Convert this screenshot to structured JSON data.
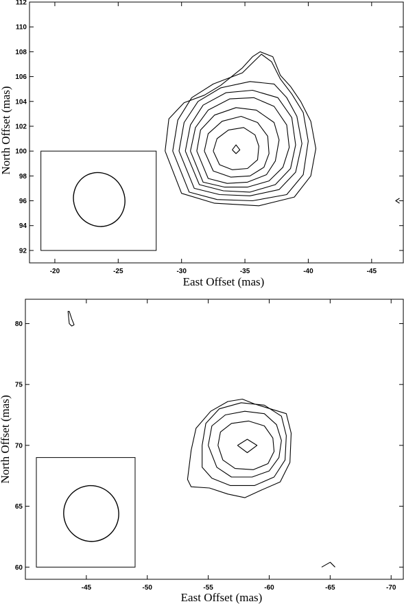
{
  "chart_data": [
    {
      "type": "contour",
      "xlabel": "East Offset (mas)",
      "ylabel": "North Offset (mas)",
      "xlim": [
        -18,
        -47.5
      ],
      "ylim": [
        91,
        112
      ],
      "x_ticks": [
        -20,
        -25,
        -30,
        -35,
        -40,
        -45
      ],
      "y_ticks": [
        92,
        94,
        96,
        98,
        100,
        102,
        104,
        106,
        108,
        110,
        112
      ],
      "x_tick_labels": [
        "-20",
        "-25",
        "-30",
        "-35",
        "-40",
        "-45"
      ],
      "y_tick_labels": [
        "92",
        "94",
        "96",
        "98",
        "100",
        "102",
        "104",
        "106",
        "108",
        "110",
        "112"
      ],
      "beam": {
        "x": -23.5,
        "y": 96.1,
        "major_axis": 4.4,
        "minor_axis": 4.0,
        "box_x": [
          -18.9,
          -28
        ],
        "box_y": [
          92,
          100
        ]
      },
      "source_peak": {
        "x": -34.3,
        "y": 100.1
      },
      "contours": [
        [
          [
            -34.0,
            100.1
          ],
          [
            -34.3,
            100.5
          ],
          [
            -34.6,
            100.1
          ],
          [
            -34.3,
            99.8
          ],
          [
            -34.0,
            100.1
          ]
        ],
        [
          [
            -32.5,
            100.0
          ],
          [
            -32.8,
            101.0
          ],
          [
            -33.7,
            101.7
          ],
          [
            -34.9,
            101.9
          ],
          [
            -35.8,
            101.3
          ],
          [
            -36.1,
            100.4
          ],
          [
            -36.0,
            99.3
          ],
          [
            -35.2,
            98.6
          ],
          [
            -34.0,
            98.5
          ],
          [
            -33.0,
            98.9
          ],
          [
            -32.5,
            100.0
          ]
        ],
        [
          [
            -31.8,
            100.0
          ],
          [
            -32.1,
            101.4
          ],
          [
            -33.2,
            102.4
          ],
          [
            -34.7,
            102.8
          ],
          [
            -36.0,
            102.3
          ],
          [
            -36.8,
            101.2
          ],
          [
            -36.9,
            99.8
          ],
          [
            -36.5,
            98.7
          ],
          [
            -35.4,
            98.0
          ],
          [
            -33.9,
            97.9
          ],
          [
            -32.5,
            98.4
          ],
          [
            -31.8,
            100.0
          ]
        ],
        [
          [
            -31.2,
            100.0
          ],
          [
            -31.5,
            101.7
          ],
          [
            -32.6,
            102.9
          ],
          [
            -34.3,
            103.5
          ],
          [
            -35.9,
            103.3
          ],
          [
            -37.3,
            102.3
          ],
          [
            -37.7,
            100.9
          ],
          [
            -37.4,
            99.2
          ],
          [
            -36.7,
            98.1
          ],
          [
            -35.2,
            97.5
          ],
          [
            -33.6,
            97.4
          ],
          [
            -32.1,
            97.8
          ],
          [
            -31.2,
            100.0
          ]
        ],
        [
          [
            -30.7,
            100.0
          ],
          [
            -31.1,
            101.9
          ],
          [
            -32.1,
            103.3
          ],
          [
            -33.8,
            104.2
          ],
          [
            -35.7,
            104.3
          ],
          [
            -37.3,
            103.6
          ],
          [
            -38.3,
            102.1
          ],
          [
            -38.5,
            100.3
          ],
          [
            -38.0,
            98.7
          ],
          [
            -36.9,
            97.6
          ],
          [
            -35.2,
            97.1
          ],
          [
            -33.4,
            97.1
          ],
          [
            -31.7,
            97.5
          ],
          [
            -30.7,
            100.0
          ]
        ],
        [
          [
            -30.3,
            100.0
          ],
          [
            -30.7,
            102.1
          ],
          [
            -31.7,
            103.7
          ],
          [
            -33.5,
            104.7
          ],
          [
            -35.6,
            104.9
          ],
          [
            -37.6,
            104.3
          ],
          [
            -38.7,
            102.7
          ],
          [
            -39.0,
            100.5
          ],
          [
            -38.6,
            98.6
          ],
          [
            -37.4,
            97.3
          ],
          [
            -35.4,
            96.7
          ],
          [
            -33.3,
            96.8
          ],
          [
            -31.4,
            97.3
          ],
          [
            -30.3,
            100.0
          ]
        ],
        [
          [
            -29.8,
            100.0
          ],
          [
            -30.2,
            102.3
          ],
          [
            -31.3,
            104.0
          ],
          [
            -33.1,
            105.1
          ],
          [
            -35.4,
            105.6
          ],
          [
            -37.3,
            105.4
          ],
          [
            -38.3,
            104.3
          ],
          [
            -39.1,
            102.8
          ],
          [
            -39.5,
            100.6
          ],
          [
            -39.0,
            98.3
          ],
          [
            -37.7,
            96.9
          ],
          [
            -35.4,
            96.4
          ],
          [
            -33.0,
            96.5
          ],
          [
            -31.0,
            97.0
          ],
          [
            -29.8,
            100.0
          ]
        ],
        [
          [
            -29.3,
            100.0
          ],
          [
            -29.7,
            102.5
          ],
          [
            -30.8,
            104.3
          ],
          [
            -32.5,
            105.4
          ],
          [
            -34.8,
            106.3
          ],
          [
            -35.8,
            107.3
          ],
          [
            -36.3,
            107.8
          ],
          [
            -37.1,
            107.2
          ],
          [
            -37.8,
            105.8
          ],
          [
            -38.7,
            104.6
          ],
          [
            -39.6,
            103.1
          ],
          [
            -40.0,
            100.8
          ],
          [
            -39.6,
            98.1
          ],
          [
            -38.3,
            96.5
          ],
          [
            -35.6,
            96.0
          ],
          [
            -32.8,
            96.1
          ],
          [
            -30.6,
            96.7
          ],
          [
            -29.3,
            100.0
          ]
        ],
        [
          [
            -28.7,
            100.0
          ],
          [
            -29.0,
            102.6
          ],
          [
            -30.2,
            103.9
          ],
          [
            -31.8,
            104.5
          ],
          [
            -33.1,
            105.3
          ],
          [
            -34.8,
            106.7
          ],
          [
            -35.6,
            107.6
          ],
          [
            -36.2,
            108.0
          ],
          [
            -37.2,
            107.6
          ],
          [
            -37.8,
            106.1
          ],
          [
            -38.6,
            105.2
          ],
          [
            -39.4,
            104.0
          ],
          [
            -40.2,
            102.4
          ],
          [
            -40.6,
            100.2
          ],
          [
            -40.2,
            98.0
          ],
          [
            -38.9,
            96.3
          ],
          [
            -36.1,
            95.6
          ],
          [
            -32.6,
            95.8
          ],
          [
            -30.0,
            96.6
          ],
          [
            -28.7,
            100.0
          ]
        ],
        [
          [
            -47.2,
            96.2
          ],
          [
            -46.9,
            96.0
          ],
          [
            -47.2,
            95.8
          ]
        ]
      ]
    },
    {
      "type": "contour",
      "xlabel": "East Offset (mas)",
      "ylabel": "North Offset (mas)",
      "xlim": [
        -40,
        -71
      ],
      "ylim": [
        59,
        82
      ],
      "x_ticks": [
        -45,
        -50,
        -55,
        -60,
        -65,
        -70
      ],
      "y_ticks": [
        60,
        65,
        70,
        75,
        80
      ],
      "x_tick_labels": [
        "-45",
        "-50",
        "-55",
        "-60",
        "-65",
        "-70"
      ],
      "y_tick_labels": [
        "60",
        "65",
        "70",
        "75",
        "80"
      ],
      "beam": {
        "x": -45.4,
        "y": 64.4,
        "major_axis": 4.6,
        "minor_axis": 4.5,
        "box_x": [
          -40.9,
          -49
        ],
        "box_y": [
          60,
          69
        ]
      },
      "source_peak": {
        "x": -58.2,
        "y": 70.0
      },
      "contours": [
        [
          [
            -57.4,
            70.0
          ],
          [
            -58.2,
            70.5
          ],
          [
            -59.0,
            70.0
          ],
          [
            -58.2,
            69.4
          ],
          [
            -57.4,
            70.0
          ]
        ],
        [
          [
            -55.8,
            70.0
          ],
          [
            -56.0,
            71.1
          ],
          [
            -56.9,
            71.8
          ],
          [
            -58.3,
            72.0
          ],
          [
            -59.6,
            71.6
          ],
          [
            -60.3,
            70.6
          ],
          [
            -60.4,
            69.5
          ],
          [
            -59.9,
            68.5
          ],
          [
            -58.7,
            68.0
          ],
          [
            -57.2,
            68.1
          ],
          [
            -56.2,
            68.8
          ],
          [
            -55.8,
            70.0
          ]
        ],
        [
          [
            -55.0,
            70.0
          ],
          [
            -55.3,
            71.6
          ],
          [
            -56.4,
            72.5
          ],
          [
            -58.0,
            72.8
          ],
          [
            -59.6,
            72.6
          ],
          [
            -60.6,
            71.7
          ],
          [
            -61.0,
            70.4
          ],
          [
            -60.8,
            69.0
          ],
          [
            -60.0,
            67.9
          ],
          [
            -58.6,
            67.4
          ],
          [
            -56.9,
            67.4
          ],
          [
            -55.7,
            68.2
          ],
          [
            -55.0,
            70.0
          ]
        ],
        [
          [
            -54.5,
            70.0
          ],
          [
            -54.8,
            71.8
          ],
          [
            -55.9,
            73.0
          ],
          [
            -57.7,
            73.5
          ],
          [
            -59.6,
            73.3
          ],
          [
            -61.0,
            72.4
          ],
          [
            -61.4,
            70.8
          ],
          [
            -61.3,
            68.8
          ],
          [
            -60.4,
            67.4
          ],
          [
            -58.8,
            66.7
          ],
          [
            -56.8,
            66.7
          ],
          [
            -55.3,
            67.3
          ],
          [
            -54.5,
            68.2
          ],
          [
            -54.5,
            70.0
          ]
        ],
        [
          [
            -53.6,
            69.6
          ],
          [
            -54.0,
            71.4
          ],
          [
            -55.2,
            72.8
          ],
          [
            -56.6,
            73.6
          ],
          [
            -57.8,
            73.8
          ],
          [
            -58.8,
            73.4
          ],
          [
            -60.1,
            73.0
          ],
          [
            -61.4,
            72.6
          ],
          [
            -61.8,
            71.0
          ],
          [
            -61.7,
            68.6
          ],
          [
            -60.9,
            67.0
          ],
          [
            -59.3,
            66.3
          ],
          [
            -58.0,
            65.7
          ],
          [
            -56.6,
            66.0
          ],
          [
            -55.1,
            66.5
          ],
          [
            -53.6,
            66.6
          ],
          [
            -53.3,
            67.2
          ],
          [
            -53.6,
            69.6
          ]
        ],
        [
          [
            -44.0,
            79.9
          ],
          [
            -43.8,
            79.8
          ],
          [
            -43.6,
            80.0
          ],
          [
            -43.5,
            81.0
          ],
          [
            -43.6,
            81.0
          ],
          [
            -43.8,
            80.4
          ],
          [
            -44.0,
            79.9
          ]
        ],
        [
          [
            -64.3,
            60.0
          ],
          [
            -65.0,
            60.4
          ],
          [
            -65.4,
            60.0
          ]
        ]
      ]
    }
  ]
}
